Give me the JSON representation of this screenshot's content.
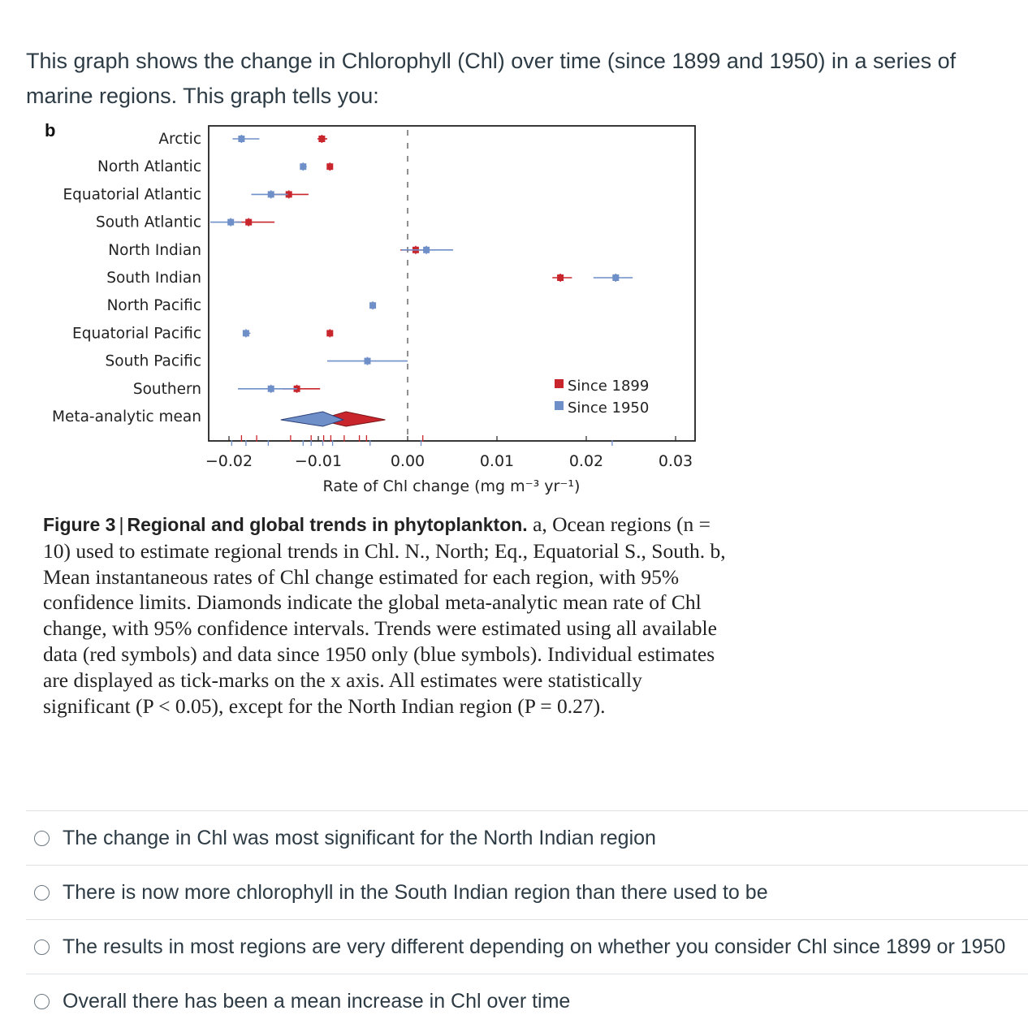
{
  "question": {
    "text": "This graph shows the change in Chlorophyll (Chl) over time (since 1899 and 1950) in a series of marine regions. This graph tells you:"
  },
  "figure": {
    "panel_letter": "b",
    "caption": {
      "lead": "Figure 3",
      "separator": "|",
      "title": "Regional and global trends in phytoplankton.",
      "body": "a, Ocean regions (n = 10) used to estimate regional trends in Chl. N., North; Eq., Equatorial S., South. b, Mean instantaneous rates of Chl change estimated for each region, with 95% confidence limits. Diamonds indicate the global meta-analytic mean rate of Chl change, with 95% confidence intervals. Trends were estimated using all available data (red symbols) and data since 1950 only (blue symbols). Individual estimates are displayed as tick-marks on the x axis. All estimates were statistically significant (P < 0.05), except for the North Indian region (P = 0.27)."
    }
  },
  "chart_data": {
    "type": "scatter",
    "subtype": "forest-plot",
    "xlabel": "Rate of Chl change (mg m⁻³ yr⁻¹)",
    "xlim": [
      -0.0205,
      0.0325
    ],
    "x_ticks": [
      -0.02,
      -0.01,
      0.0,
      0.01,
      0.02,
      0.03
    ],
    "x_tick_labels": [
      "−0.02",
      "−0.01",
      "0.00",
      "0.01",
      "0.02",
      "0.03"
    ],
    "reference_line": 0.0,
    "legend_position": "bottom-right",
    "grid": false,
    "categories": [
      "Arctic",
      "North Atlantic",
      "Equatorial Atlantic",
      "South Atlantic",
      "North Indian",
      "South Indian",
      "North Pacific",
      "Equatorial Pacific",
      "South Pacific",
      "Southern",
      "Meta-analytic mean"
    ],
    "series": [
      {
        "name": "Since 1899",
        "color": "#c8262c",
        "points": [
          {
            "region": "Arctic",
            "value": -0.0096,
            "ci": [
              -0.0101,
              -0.009
            ]
          },
          {
            "region": "North Atlantic",
            "value": -0.0087,
            "ci": [
              -0.0089,
              -0.0085
            ]
          },
          {
            "region": "Equatorial Atlantic",
            "value": -0.0133,
            "ci": [
              -0.0151,
              -0.0111
            ]
          },
          {
            "region": "South Atlantic",
            "value": -0.0178,
            "ci": [
              -0.0193,
              -0.0149
            ]
          },
          {
            "region": "North Indian",
            "value": 0.0009,
            "ci": [
              -0.0008,
              0.0025
            ]
          },
          {
            "region": "South Indian",
            "value": 0.0171,
            "ci": [
              0.0162,
              0.0184
            ]
          },
          {
            "region": "Equatorial Pacific",
            "value": -0.0087,
            "ci": [
              -0.0089,
              -0.0085
            ]
          },
          {
            "region": "Southern",
            "value": -0.0124,
            "ci": [
              -0.014,
              -0.0098
            ]
          },
          {
            "region": "Meta-analytic mean",
            "value": -0.0069,
            "ci": [
              -0.01,
              -0.0025
            ]
          }
        ]
      },
      {
        "name": "Since 1950",
        "color": "#6f8fc9",
        "points": [
          {
            "region": "Arctic",
            "value": -0.0186,
            "ci": [
              -0.0196,
              -0.0166
            ]
          },
          {
            "region": "North Atlantic",
            "value": -0.0117,
            "ci": [
              -0.012,
              -0.0113
            ]
          },
          {
            "region": "Equatorial Atlantic",
            "value": -0.0153,
            "ci": [
              -0.0175,
              -0.0134
            ]
          },
          {
            "region": "South Atlantic",
            "value": -0.0198,
            "ci": [
              -0.0221,
              -0.0186
            ]
          },
          {
            "region": "North Indian",
            "value": 0.0021,
            "ci": [
              -0.0007,
              0.0051
            ]
          },
          {
            "region": "South Indian",
            "value": 0.0233,
            "ci": [
              0.0208,
              0.0252
            ]
          },
          {
            "region": "North Pacific",
            "value": -0.0039,
            "ci": [
              -0.004,
              -0.0038
            ]
          },
          {
            "region": "Equatorial Pacific",
            "value": -0.0181,
            "ci": [
              -0.0183,
              -0.0176
            ]
          },
          {
            "region": "South Pacific",
            "value": -0.0045,
            "ci": [
              -0.009,
              0.0
            ]
          },
          {
            "region": "Southern",
            "value": -0.0153,
            "ci": [
              -0.019,
              -0.0124
            ]
          },
          {
            "region": "Meta-analytic mean",
            "value": -0.0095,
            "ci": [
              -0.0142,
              -0.0072
            ]
          }
        ]
      }
    ],
    "x_tick_marks_red": [
      -0.0186,
      -0.0169,
      -0.0131,
      -0.0108,
      -0.0094,
      -0.0086,
      -0.0071,
      -0.0054,
      -0.0046,
      0.0017
    ],
    "x_tick_marks_blue": [
      -0.0197,
      -0.0181,
      -0.0156,
      -0.0117,
      -0.0108,
      -0.0095,
      -0.0084,
      -0.0042,
      0.0015,
      0.0229
    ]
  },
  "answers": [
    {
      "text": "The change in Chl was most significant for the North Indian region"
    },
    {
      "text": "There is now more chlorophyll in the South Indian region than there used to be"
    },
    {
      "text": "The results in most regions are very different depending on whether you consider Chl since 1899 or 1950"
    },
    {
      "text": "Overall there has been a mean increase in Chl over time"
    }
  ]
}
